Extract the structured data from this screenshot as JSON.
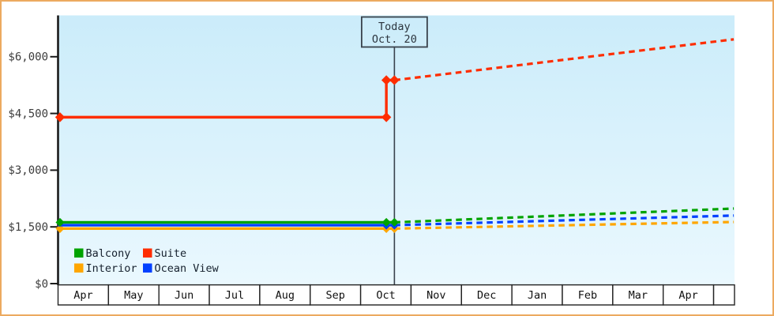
{
  "chart_data": {
    "type": "line",
    "title": "",
    "x_axis": {
      "label_cells": [
        "Apr",
        "May",
        "Jun",
        "Jul",
        "Aug",
        "Sep",
        "Oct",
        "Nov",
        "Dec",
        "Jan",
        "Feb",
        "Mar",
        "Apr",
        ""
      ]
    },
    "y_axis": {
      "ticks": [
        {
          "label": "$0",
          "value": 0
        },
        {
          "label": "$1,500",
          "value": 1500
        },
        {
          "label": "$3,000",
          "value": 3000
        },
        {
          "label": "$4,500",
          "value": 4500
        },
        {
          "label": "$6,000",
          "value": 6000
        }
      ],
      "ylim": [
        0,
        7100
      ],
      "grid": false
    },
    "today_annotation": {
      "line1": "Today",
      "line2": "Oct. 20",
      "month_position": 6.67
    },
    "series": [
      {
        "id": "interior",
        "name": "Interior",
        "color": "#ffa600",
        "solid": [
          [
            0,
            1455
          ],
          [
            6.67,
            1455
          ]
        ],
        "forecast": [
          [
            6.67,
            1455
          ],
          [
            13.4,
            1630
          ]
        ],
        "markers": [
          [
            0,
            1455
          ],
          [
            6.51,
            1455
          ],
          [
            6.67,
            1455
          ]
        ]
      },
      {
        "id": "ocean-view",
        "name": "Ocean View",
        "color": "#0040ff",
        "solid": [
          [
            0,
            1545
          ],
          [
            6.67,
            1545
          ]
        ],
        "forecast": [
          [
            6.67,
            1545
          ],
          [
            13.4,
            1800
          ]
        ],
        "markers": [
          [
            6.51,
            1545
          ],
          [
            6.67,
            1545
          ]
        ]
      },
      {
        "id": "balcony",
        "name": "Balcony",
        "color": "#00a300",
        "solid": [
          [
            0,
            1620
          ],
          [
            6.67,
            1620
          ]
        ],
        "forecast": [
          [
            6.67,
            1620
          ],
          [
            13.4,
            1985
          ]
        ],
        "markers": [
          [
            0,
            1620
          ],
          [
            6.51,
            1620
          ],
          [
            6.67,
            1620
          ]
        ]
      },
      {
        "id": "suite",
        "name": "Suite",
        "color": "#ff2d00",
        "solid": [
          [
            0,
            4400
          ],
          [
            6.51,
            4400
          ],
          [
            6.51,
            5380
          ],
          [
            6.67,
            5380
          ]
        ],
        "forecast": [
          [
            6.67,
            5380
          ],
          [
            13.4,
            6460
          ]
        ],
        "markers": [
          [
            0,
            4400
          ],
          [
            6.51,
            4400
          ],
          [
            6.51,
            5380
          ],
          [
            6.67,
            5380
          ]
        ]
      }
    ],
    "legend": [
      {
        "id": "balcony",
        "label": "Balcony",
        "color": "#00a300"
      },
      {
        "id": "suite",
        "label": "Suite",
        "color": "#ff2d00"
      },
      {
        "id": "interior",
        "label": "Interior",
        "color": "#ffa600"
      },
      {
        "id": "ocean-view",
        "label": "Ocean View",
        "color": "#0040ff"
      }
    ],
    "legend_position": "bottom-left-inside"
  },
  "colors": {
    "frame_border": "#ecaa60",
    "plot_gradient_top": "#cbecfa",
    "plot_gradient_bottom": "#eaf8fe",
    "axis": "#1a1a1a",
    "tick_label": "#3d3d3d",
    "month_label": "#101010",
    "month_cell_border": "#222222",
    "legend_text": "#16212e",
    "today_line": "#39424c",
    "today_box_border": "#39424c",
    "today_text": "#2c353e",
    "background": "#ffffff"
  }
}
